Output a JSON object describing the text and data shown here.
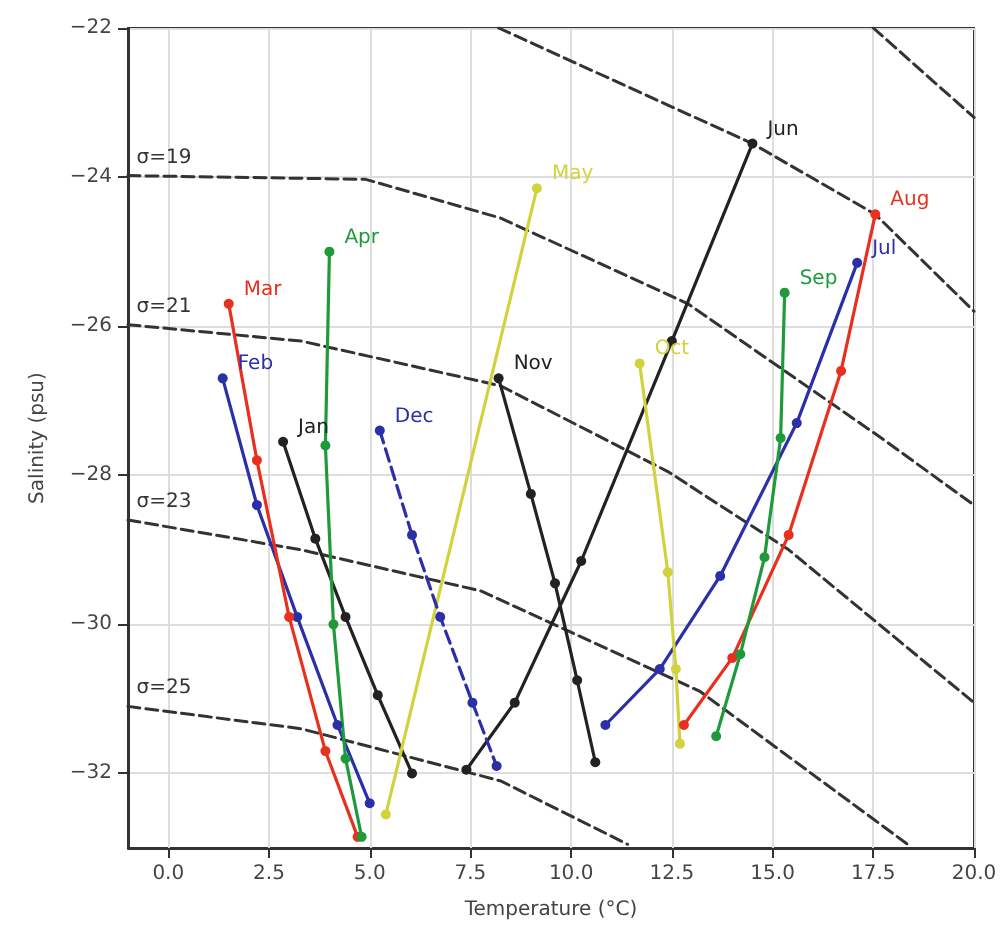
{
  "chart_data": {
    "type": "line",
    "xlabel": "Temperature (°C)",
    "ylabel": "Salinity (psu)",
    "xlim": [
      -1,
      20
    ],
    "ylim": [
      -33,
      -22
    ],
    "xticks": [
      {
        "value": 0,
        "label": "0.0"
      },
      {
        "value": 2.5,
        "label": "2.5"
      },
      {
        "value": 5,
        "label": "5.0"
      },
      {
        "value": 7.5,
        "label": "7.5"
      },
      {
        "value": 10,
        "label": "10.0"
      },
      {
        "value": 12.5,
        "label": "12.5"
      },
      {
        "value": 15,
        "label": "15.0"
      },
      {
        "value": 17.5,
        "label": "17.5"
      },
      {
        "value": 20,
        "label": "20.0"
      }
    ],
    "yticks": [
      {
        "value": -22,
        "label": "−22"
      },
      {
        "value": -24,
        "label": "−24"
      },
      {
        "value": -26,
        "label": "−26"
      },
      {
        "value": -28,
        "label": "−28"
      },
      {
        "value": -30,
        "label": "−30"
      },
      {
        "value": -32,
        "label": "−32"
      }
    ],
    "grid": true,
    "marker": "circle",
    "line_style": "solid",
    "series": [
      {
        "color": "#333333",
        "line_style": "dashed",
        "marker": "none",
        "x": [
          17.5,
          20.0
        ],
        "values": [
          -22.0,
          -23.2
        ]
      },
      {
        "color": "#333333",
        "line_style": "dashed",
        "marker": "none",
        "x": [
          8.2,
          14.5,
          17.55,
          20.0
        ],
        "values": [
          -22.0,
          -23.55,
          -24.5,
          -25.8
        ]
      },
      {
        "name": "σ=19",
        "color": "#333333",
        "line_style": "dashed",
        "marker": "none",
        "x": [
          -1,
          4.9,
          8.25,
          12.9,
          17.7,
          20.0
        ],
        "values": [
          -23.98,
          -24.03,
          -24.55,
          -25.7,
          -27.5,
          -28.4
        ]
      },
      {
        "name": "σ=21",
        "color": "#333333",
        "line_style": "dashed",
        "marker": "none",
        "x": [
          -1,
          3.3,
          8.25,
          12.4,
          15.4,
          20.0
        ],
        "values": [
          -25.98,
          -26.2,
          -26.8,
          -27.95,
          -29.0,
          -31.05
        ]
      },
      {
        "name": "σ=23",
        "color": "#333333",
        "line_style": "dashed",
        "marker": "none",
        "x": [
          -1,
          3.3,
          7.75,
          13.2,
          18.35
        ],
        "values": [
          -28.6,
          -29.0,
          -29.55,
          -30.9,
          -32.95
        ]
      },
      {
        "name": "σ=25",
        "color": "#333333",
        "line_style": "dashed",
        "marker": "none",
        "x": [
          -1,
          3.3,
          8.25,
          11.4
        ],
        "values": [
          -31.1,
          -31.4,
          -32.1,
          -32.95
        ]
      },
      {
        "name": "Jan",
        "color": "#222222",
        "x": [
          2.85,
          3.65,
          4.4,
          5.2,
          6.05
        ],
        "values": [
          -27.55,
          -28.85,
          -29.9,
          -30.95,
          -32.0
        ]
      },
      {
        "name": "Feb",
        "color": "#2b2fa8",
        "x": [
          1.35,
          2.2,
          3.2,
          4.2,
          5.0
        ],
        "values": [
          -26.7,
          -28.4,
          -29.9,
          -31.35,
          -32.4
        ]
      },
      {
        "name": "Mar",
        "color": "#e8301e",
        "x": [
          1.5,
          2.2,
          3.0,
          3.9,
          4.7
        ],
        "values": [
          -25.7,
          -27.8,
          -29.9,
          -31.7,
          -32.85
        ]
      },
      {
        "name": "Apr",
        "color": "#1f9a3a",
        "x": [
          4.0,
          3.9,
          4.1,
          4.4,
          4.8
        ],
        "values": [
          -25.0,
          -27.6,
          -30.0,
          -31.8,
          -32.85
        ]
      },
      {
        "name": "May",
        "color": "#d2d23c",
        "x": [
          9.15,
          5.4
        ],
        "values": [
          -24.15,
          -32.55
        ]
      },
      {
        "name": "Jun",
        "color": "#222222",
        "x": [
          14.5,
          12.5,
          10.25,
          8.6,
          7.4
        ],
        "values": [
          -23.55,
          -26.2,
          -29.15,
          -31.05,
          -31.95
        ]
      },
      {
        "name": "Jul",
        "color": "#2b2fa8",
        "x": [
          17.1,
          15.6,
          13.7,
          12.2,
          10.85
        ],
        "values": [
          -25.15,
          -27.3,
          -29.35,
          -30.6,
          -31.35
        ]
      },
      {
        "name": "Aug",
        "color": "#e8301e",
        "x": [
          17.55,
          16.7,
          15.4,
          14.0,
          12.8
        ],
        "values": [
          -24.5,
          -26.6,
          -28.8,
          -30.45,
          -31.35
        ]
      },
      {
        "name": "Sep",
        "color": "#1f9a3a",
        "x": [
          15.3,
          15.2,
          14.8,
          14.2,
          13.6
        ],
        "values": [
          -25.55,
          -27.5,
          -29.1,
          -30.4,
          -31.5
        ]
      },
      {
        "name": "Oct",
        "color": "#d2d23c",
        "x": [
          11.7,
          12.4,
          12.6,
          12.7
        ],
        "values": [
          -26.5,
          -29.3,
          -30.6,
          -31.6
        ]
      },
      {
        "name": "Nov",
        "color": "#222222",
        "x": [
          8.2,
          9.0,
          9.6,
          10.15,
          10.6
        ],
        "values": [
          -26.7,
          -28.25,
          -29.45,
          -30.75,
          -31.85
        ]
      },
      {
        "name": "Dec",
        "color": "#2b2fa8",
        "line_style": "dashed",
        "x": [
          5.25,
          6.05,
          6.75,
          7.55,
          8.15
        ],
        "values": [
          -27.4,
          -28.8,
          -29.9,
          -31.05,
          -31.9
        ]
      }
    ]
  }
}
